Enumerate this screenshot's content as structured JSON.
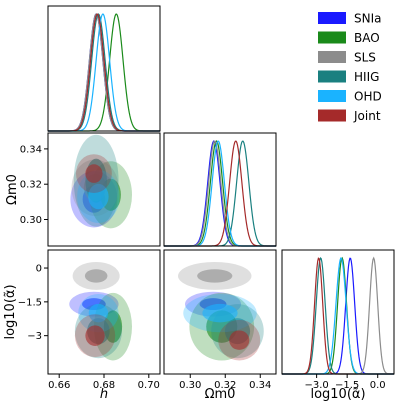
{
  "chart_data": {
    "type": "corner",
    "parameters": [
      {
        "key": "h",
        "label": "h",
        "range": [
          0.655,
          0.705
        ],
        "ticks": [
          "0.66",
          "0.68",
          "0.70"
        ],
        "tick_values": [
          0.66,
          0.68,
          0.7
        ]
      },
      {
        "key": "om",
        "label": "Ωm0",
        "range": [
          0.285,
          0.349
        ],
        "ticks": [
          "0.30",
          "0.32",
          "0.34"
        ],
        "tick_values": [
          0.3,
          0.32,
          0.34
        ]
      },
      {
        "key": "la",
        "label": "log10(α̃)",
        "range": [
          -4.7,
          0.8
        ],
        "ticks": [
          "−3.0",
          "−1.5",
          "0.0"
        ],
        "tick_values": [
          -3.0,
          -1.5,
          0.0
        ],
        "y_ticks": [
          "0",
          "−1.5",
          "−3"
        ],
        "y_tick_values": [
          0,
          -1.5,
          -3
        ]
      }
    ],
    "series": [
      {
        "name": "SNIa",
        "color": "#1a1aff",
        "h": {
          "mean": 0.6765,
          "sd": 0.003
        },
        "om": {
          "mean": 0.3135,
          "sd": 0.0035
        },
        "la": {
          "mean": -1.35,
          "sd": 0.22
        },
        "contour": {
          "h_om": {
            "cx": 0.6755,
            "cy": 0.3115,
            "rx": 0.0105,
            "ry": 0.016
          },
          "h_la": {
            "cx": 0.6755,
            "cy": -1.6,
            "rx": 0.011,
            "ry": 0.55
          },
          "om_la": {
            "cx": 0.313,
            "cy": -1.6,
            "rx": 0.016,
            "ry": 0.55
          }
        }
      },
      {
        "name": "BAO",
        "color": "#1a8a1a",
        "h": {
          "mean": 0.6855,
          "sd": 0.003
        },
        "om": {
          "mean": 0.315,
          "sd": 0.0035
        },
        "la": {
          "mean": -1.75,
          "sd": 0.22
        },
        "contour": {
          "h_om": {
            "cx": 0.683,
            "cy": 0.314,
            "rx": 0.0095,
            "ry": 0.019
          },
          "h_la": {
            "cx": 0.684,
            "cy": -2.6,
            "rx": 0.0085,
            "ry": 1.5
          },
          "om_la": {
            "cx": 0.318,
            "cy": -2.6,
            "rx": 0.0185,
            "ry": 1.5
          }
        }
      },
      {
        "name": "SLS",
        "color": "#8c8c8c",
        "h": {
          "mean": 0.6765,
          "sd": 0.003
        },
        "om": {
          "mean": 0.314,
          "sd": 0.0035
        },
        "la": {
          "mean": -0.2,
          "sd": 0.2
        },
        "contour": {
          "h_om": {
            "cx": 0.676,
            "cy": 0.318,
            "rx": 0.0105,
            "ry": 0.016
          },
          "h_la": {
            "cx": 0.6765,
            "cy": -0.35,
            "rx": 0.0105,
            "ry": 0.62
          },
          "om_la": {
            "cx": 0.314,
            "cy": -0.35,
            "rx": 0.021,
            "ry": 0.62
          }
        }
      },
      {
        "name": "HIIG",
        "color": "#1a8080",
        "h": {
          "mean": 0.6775,
          "sd": 0.003
        },
        "om": {
          "mean": 0.33,
          "sd": 0.0035
        },
        "la": {
          "mean": -2.8,
          "sd": 0.22
        },
        "contour": {
          "h_om": {
            "cx": 0.6765,
            "cy": 0.322,
            "rx": 0.01,
            "ry": 0.026
          },
          "h_la": {
            "cx": 0.6775,
            "cy": -2.8,
            "rx": 0.0105,
            "ry": 1.2
          },
          "om_la": {
            "cx": 0.327,
            "cy": -2.8,
            "rx": 0.015,
            "ry": 1.2
          }
        }
      },
      {
        "name": "OHD",
        "color": "#1ab3ff",
        "h": {
          "mean": 0.6795,
          "sd": 0.003
        },
        "om": {
          "mean": 0.316,
          "sd": 0.0035
        },
        "la": {
          "mean": -1.8,
          "sd": 0.25
        },
        "contour": {
          "h_om": {
            "cx": 0.6775,
            "cy": 0.313,
            "rx": 0.0095,
            "ry": 0.015
          },
          "h_la": {
            "cx": 0.6775,
            "cy": -2.0,
            "rx": 0.009,
            "ry": 0.85
          },
          "om_la": {
            "cx": 0.317,
            "cy": -2.0,
            "rx": 0.021,
            "ry": 0.85
          }
        }
      },
      {
        "name": "Joint",
        "color": "#a52a2a",
        "h": {
          "mean": 0.677,
          "sd": 0.003
        },
        "om": {
          "mean": 0.326,
          "sd": 0.0035
        },
        "la": {
          "mean": -2.9,
          "sd": 0.2
        },
        "contour": {
          "h_om": {
            "cx": 0.6755,
            "cy": 0.326,
            "rx": 0.008,
            "ry": 0.011
          },
          "h_la": {
            "cx": 0.676,
            "cy": -3.0,
            "rx": 0.009,
            "ry": 0.95
          },
          "om_la": {
            "cx": 0.328,
            "cy": -3.2,
            "rx": 0.012,
            "ry": 0.9
          }
        }
      }
    ],
    "legend_position": "top-right",
    "grid": false
  }
}
